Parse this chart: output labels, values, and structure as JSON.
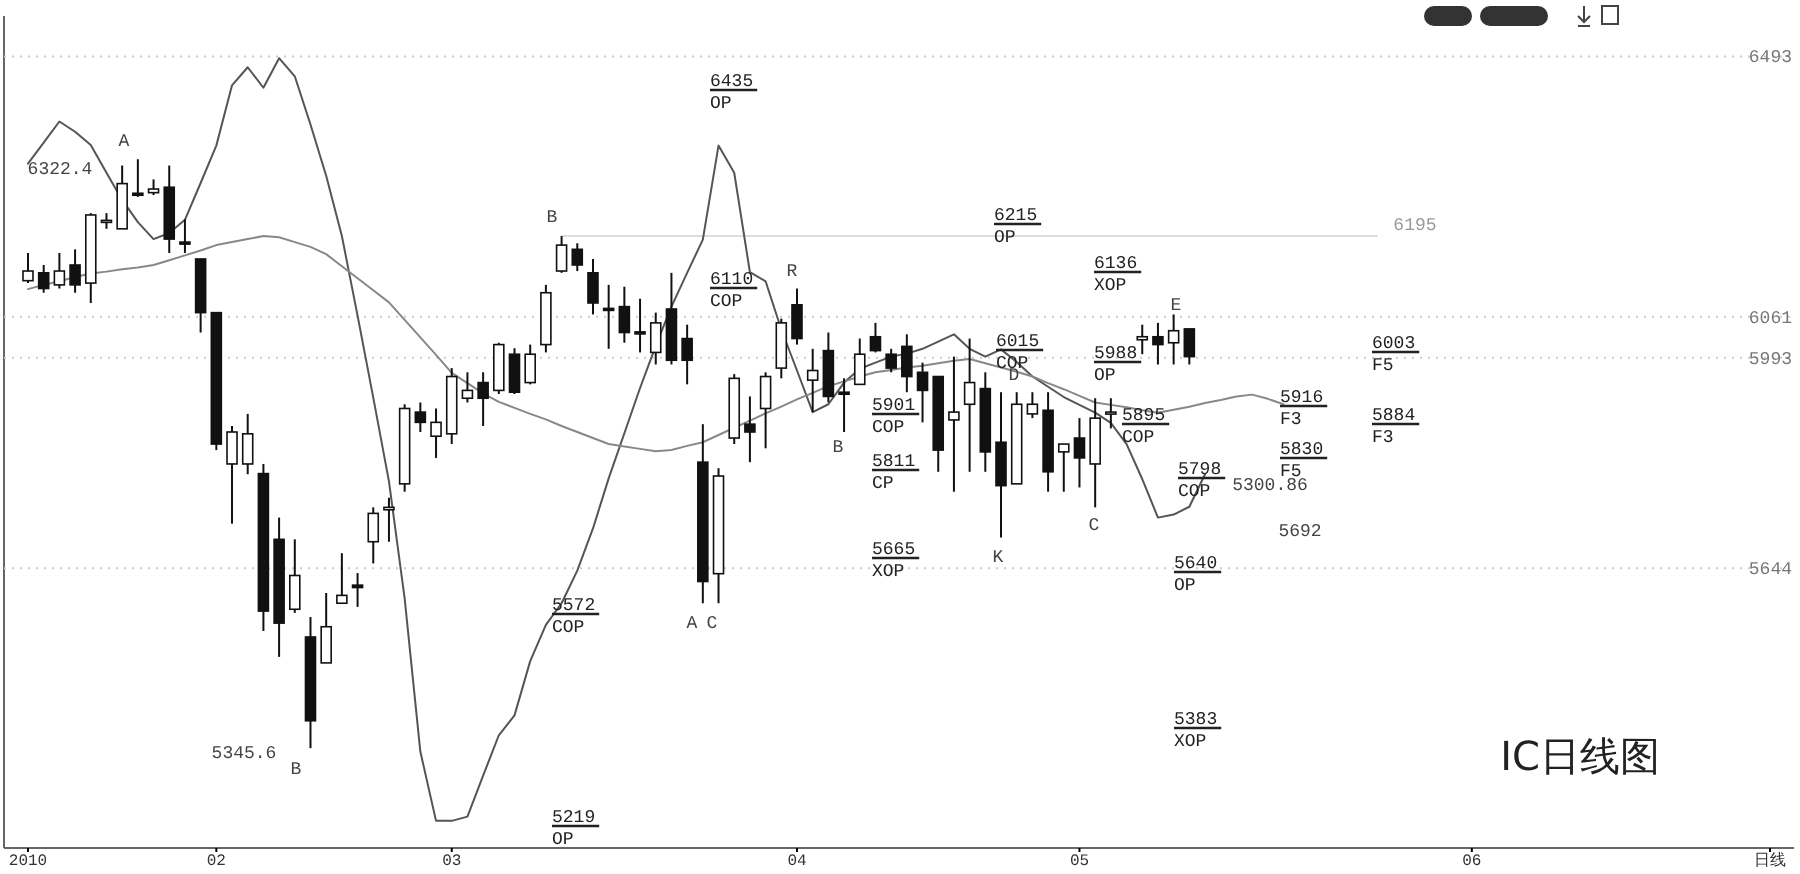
{
  "chart_data": {
    "type": "candlestick",
    "title": "IC日线图",
    "categories": [
      "2010",
      null,
      null,
      null,
      null,
      null,
      null,
      null,
      null,
      null,
      null,
      null,
      "02",
      null,
      null,
      null,
      null,
      null,
      null,
      null,
      null,
      null,
      null,
      null,
      null,
      null,
      null,
      "03",
      null,
      null,
      null,
      null,
      null,
      null,
      null,
      null,
      null,
      null,
      null,
      null,
      null,
      null,
      null,
      null,
      null,
      null,
      null,
      null,
      null,
      "04",
      null,
      null,
      null,
      null,
      null,
      null,
      null,
      null,
      null,
      null,
      null,
      null,
      null,
      null,
      null,
      null,
      null,
      "05",
      null,
      null,
      null,
      null,
      null,
      null,
      null,
      null,
      null,
      null,
      null,
      null,
      null,
      null,
      null,
      null,
      null,
      null,
      null,
      null,
      null,
      null,
      null,
      null,
      "06",
      null,
      null,
      null,
      null,
      null,
      null,
      null,
      null,
      null,
      null,
      null,
      null,
      null,
      null,
      null,
      null,
      null,
      null,
      "日线"
    ],
    "ylim": [
      5180,
      6560
    ],
    "yticks": [
      6493,
      6061,
      5993,
      5644
    ],
    "grid": "y",
    "ohlc": [
      [
        6121,
        6167,
        6117,
        6137
      ],
      [
        6134,
        6147,
        6101,
        6108
      ],
      [
        6114,
        6167,
        6108,
        6137
      ],
      [
        6147,
        6173,
        6101,
        6114
      ],
      [
        6117,
        6233,
        6084,
        6230
      ],
      [
        6218,
        6233,
        6207,
        6221
      ],
      [
        6207,
        6312,
        6207,
        6282
      ],
      [
        6266,
        6322.4,
        6260,
        6263
      ],
      [
        6267,
        6289,
        6263,
        6273
      ],
      [
        6276,
        6312,
        6167,
        6190
      ],
      [
        6185,
        6223,
        6167,
        6183
      ],
      [
        6157,
        6157,
        6035,
        6068
      ],
      [
        6068,
        6068,
        5840,
        5850
      ],
      [
        5817,
        5880,
        5718,
        5870
      ],
      [
        5817,
        5900,
        5800,
        5867
      ],
      [
        5801,
        5817,
        5540,
        5573
      ],
      [
        5692,
        5728,
        5497,
        5553
      ],
      [
        5576,
        5692,
        5570,
        5632
      ],
      [
        5530,
        5563,
        5345.6,
        5391
      ],
      [
        5487,
        5603,
        5487,
        5547
      ],
      [
        5586,
        5669,
        5586,
        5599
      ],
      [
        5616,
        5636,
        5580,
        5612
      ],
      [
        5688,
        5745,
        5652,
        5735
      ],
      [
        5741,
        5761,
        5688,
        5745
      ],
      [
        5784,
        5916,
        5771,
        5909
      ],
      [
        5903,
        5919,
        5870,
        5886
      ],
      [
        5863,
        5909,
        5827,
        5886
      ],
      [
        5867,
        5976,
        5850,
        5962
      ],
      [
        5926,
        5969,
        5919,
        5939
      ],
      [
        5952,
        5969,
        5880,
        5926
      ],
      [
        5939,
        6018,
        5933,
        6015
      ],
      [
        5999,
        6009,
        5933,
        5936
      ],
      [
        5952,
        6015,
        5949,
        5999
      ],
      [
        6015,
        6114,
        6002,
        6101
      ],
      [
        6137,
        6195,
        6134,
        6180
      ],
      [
        6173,
        6183,
        6137,
        6147
      ],
      [
        6134,
        6157,
        6065,
        6084
      ],
      [
        6075,
        6114,
        6008,
        6074
      ],
      [
        6078,
        6111,
        6018,
        6035
      ],
      [
        6036,
        6091,
        6002,
        6035
      ],
      [
        6002,
        6068,
        5982,
        6051
      ],
      [
        6074,
        6134,
        5982,
        5989
      ],
      [
        6025,
        6048,
        5949,
        5989
      ],
      [
        5820,
        5883,
        5586,
        5622
      ],
      [
        5635,
        5810,
        5586,
        5797
      ],
      [
        5860,
        5966,
        5850,
        5959
      ],
      [
        5883,
        5929,
        5820,
        5870
      ],
      [
        5909,
        5969,
        5843,
        5962
      ],
      [
        5976,
        6058,
        5959,
        6051
      ],
      [
        6081,
        6108,
        6015,
        6025
      ],
      [
        5956,
        6008,
        5903,
        5972
      ],
      [
        6005,
        6035,
        5919,
        5929
      ],
      [
        5936,
        5959,
        5870,
        5933
      ],
      [
        5949,
        6025,
        5949,
        5999
      ],
      [
        6028,
        6051,
        6002,
        6005
      ],
      [
        5999,
        6008,
        5969,
        5976
      ],
      [
        6012,
        6032,
        5936,
        5962
      ],
      [
        5969,
        5985,
        5886,
        5939
      ],
      [
        5962,
        5962,
        5804,
        5840
      ],
      [
        5890,
        5995,
        5771,
        5903
      ],
      [
        5916,
        6025,
        5804,
        5952
      ],
      [
        5942,
        5969,
        5804,
        5837
      ],
      [
        5853,
        5936,
        5695,
        5781
      ],
      [
        5784,
        5936,
        5784,
        5916
      ],
      [
        5900,
        5936,
        5893,
        5916
      ],
      [
        5906,
        5936,
        5771,
        5804
      ],
      [
        5837,
        5850,
        5771,
        5850
      ],
      [
        5860,
        5893,
        5778,
        5827
      ],
      [
        5817,
        5926,
        5745,
        5893
      ],
      [
        5901,
        5926,
        5876,
        5903
      ],
      null,
      [
        6023,
        6048,
        5999,
        6028
      ],
      [
        6028,
        6051,
        5982,
        6015
      ],
      [
        6018,
        6065,
        5982,
        6038
      ],
      [
        6041,
        6041,
        5982,
        5995
      ],
      null,
      null,
      null,
      null,
      null,
      null,
      null,
      null,
      null,
      null,
      null,
      null,
      null,
      null,
      null,
      null,
      null,
      null,
      null,
      null,
      null,
      null,
      null,
      null,
      null,
      null,
      null,
      null,
      null,
      null,
      null,
      null,
      null,
      null,
      null,
      null,
      null
    ],
    "series": [
      {
        "type": "line",
        "color": "#555555",
        "values": [
          6315,
          6350,
          6385,
          6368,
          6346,
          6300,
          6255,
          6218,
          6190,
          6200,
          6222,
          6283,
          6345,
          6445,
          6475,
          6441,
          6490,
          6460,
          6380,
          6295,
          6195,
          6063,
          5927,
          5788,
          5594,
          5340,
          5225,
          5225,
          5232,
          5300,
          5367,
          5400,
          5490,
          5550,
          5586,
          5640,
          5710,
          5793,
          5868,
          5943,
          6013,
          6078,
          6134,
          6189,
          6345,
          6300,
          6135,
          6120,
          6040,
          5972,
          5903,
          5916,
          5952,
          5975,
          5985,
          5995,
          6000,
          6008,
          6020,
          6032,
          6008,
          5995,
          6007,
          5986,
          5962,
          5945,
          5928,
          5915,
          5902,
          5885,
          5850,
          5792,
          5728,
          5733,
          5746,
          5800,
          null,
          null,
          null,
          null,
          null,
          null,
          null,
          null,
          null,
          null,
          null,
          null,
          null,
          null,
          null,
          null,
          null,
          null,
          null,
          null,
          null,
          null,
          null,
          null,
          null,
          null,
          null,
          null,
          null,
          null,
          null,
          null,
          null,
          null,
          null,
          null
        ]
      },
      {
        "type": "line",
        "color": "#888888",
        "values": [
          6107,
          6114,
          6120,
          6127,
          6133,
          6136,
          6140,
          6143,
          6147,
          6155,
          6163,
          6171,
          6180,
          6185,
          6190,
          6195,
          6193,
          6185,
          6177,
          6165,
          6145,
          6125,
          6105,
          6085,
          6056,
          6027,
          5998,
          5968,
          5951,
          5934,
          5920,
          5910,
          5900,
          5891,
          5880,
          5870,
          5860,
          5850,
          5846,
          5842,
          5838,
          5840,
          5847,
          5853,
          5865,
          5877,
          5889,
          5901,
          5912,
          5924,
          5935,
          5946,
          5954,
          5962,
          5969,
          5973,
          5977,
          5980,
          5984,
          5988,
          5991,
          5984,
          5977,
          5970,
          5962,
          5951,
          5941,
          5930,
          5919,
          5915,
          5911,
          5906,
          5902,
          5907,
          5912,
          5918,
          5923,
          5929,
          5932,
          5925,
          5916,
          null,
          null,
          null,
          null,
          null,
          null,
          null,
          null,
          null,
          null,
          null,
          null,
          null,
          null,
          null,
          null,
          null,
          null,
          null,
          null,
          null,
          null,
          null,
          null,
          null,
          null,
          null,
          null,
          null,
          null,
          null
        ]
      }
    ],
    "ref_lines": [
      {
        "axis": "y",
        "value": 6195,
        "label": "6195",
        "color": "#dddddd"
      }
    ],
    "annotations": [
      "6435\nOP",
      "6215\nOP",
      "6136\nXOP",
      "6110\nCOP",
      "6015\nCOP",
      "5988\nOP",
      "5901\nCOP",
      "5895\nCOP",
      "5811\nCP",
      "5798\nCOP",
      "5665\nXOP",
      "5640\nOP",
      "5572\nCOP",
      "5383\nXOP",
      "5219\nOP",
      "6003\nF5",
      "5884\nF3",
      "5916\nF3",
      "5830\nF5",
      "6322.4",
      "5345.6",
      "5300.86",
      "5692",
      "A",
      "B",
      "B",
      "R",
      "B",
      "D",
      "C",
      "K",
      "E",
      "A",
      "C"
    ]
  }
}
